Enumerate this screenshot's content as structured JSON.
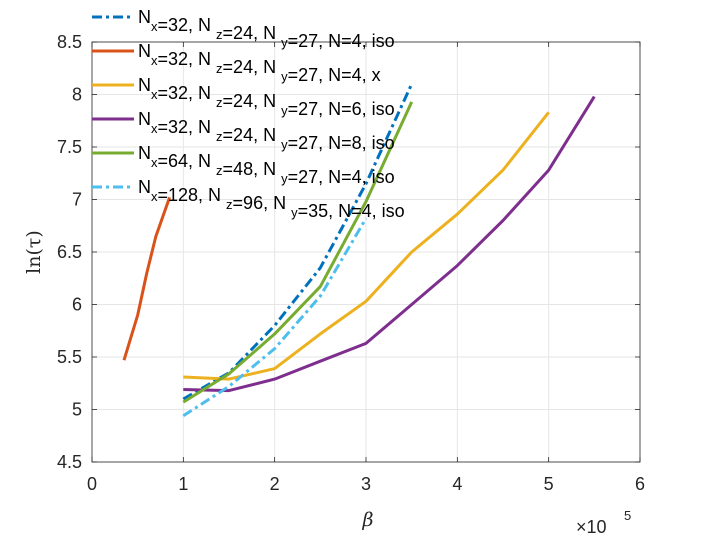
{
  "chart_data": {
    "type": "line",
    "title": "",
    "xlabel": "β",
    "ylabel": "ln(τ)",
    "x_exponent_label": {
      "base": "×10",
      "exp": "5"
    },
    "xlim": [
      0,
      6
    ],
    "ylim": [
      4.5,
      8.5
    ],
    "x_ticks": [
      0,
      1,
      2,
      3,
      4,
      5,
      6
    ],
    "x_tick_labels": [
      "0",
      "1",
      "2",
      "3",
      "4",
      "5",
      "6"
    ],
    "y_ticks": [
      4.5,
      5,
      5.5,
      6,
      6.5,
      7,
      7.5,
      8,
      8.5
    ],
    "y_tick_labels": [
      "4.5",
      "5",
      "5.5",
      "6",
      "6.5",
      "7",
      "7.5",
      "8",
      "8.5"
    ],
    "grid": true,
    "legend_position": "top-left",
    "series": [
      {
        "name": "Nx=32, Nz=24, Ny=27, N=4, iso",
        "legend": {
          "nx": "32",
          "nz": "24",
          "ny": "27",
          "rest": "=27, N=4, iso"
        },
        "color": "#0072BD",
        "style": "dashdot",
        "x": [
          1.0,
          1.5,
          2.0,
          2.5,
          3.0,
          3.5
        ],
        "y": [
          5.1,
          5.35,
          5.8,
          6.35,
          7.15,
          8.1
        ]
      },
      {
        "name": "Nx=32, Nz=24, Ny=27, N=4, x",
        "legend": {
          "nx": "32",
          "nz": "24",
          "ny": "27",
          "rest": "=27, N=4, x"
        },
        "color": "#D95319",
        "style": "solid",
        "x": [
          0.35,
          0.5,
          0.6,
          0.7,
          0.85
        ],
        "y": [
          5.47,
          5.9,
          6.3,
          6.65,
          7.02
        ]
      },
      {
        "name": "Nx=32, Nz=24, Ny=27, N=6, iso",
        "legend": {
          "nx": "32",
          "nz": "24",
          "ny": "27",
          "rest": "=27, N=6, iso"
        },
        "color": "#EDB120",
        "style": "solid",
        "x": [
          1.0,
          1.5,
          2.0,
          2.5,
          3.0,
          3.5,
          4.0,
          4.5,
          5.0
        ],
        "y": [
          5.31,
          5.29,
          5.39,
          5.72,
          6.03,
          6.5,
          6.86,
          7.28,
          7.83
        ]
      },
      {
        "name": "Nx=32, Nz=24, Ny=27, N=8, iso",
        "legend": {
          "nx": "32",
          "nz": "24",
          "ny": "27",
          "rest": "=27, N=8, iso"
        },
        "color": "#7E2F8E",
        "style": "solid",
        "x": [
          1.0,
          1.5,
          2.0,
          2.5,
          3.0,
          3.5,
          4.0,
          4.5,
          5.0,
          5.5
        ],
        "y": [
          5.19,
          5.18,
          5.29,
          5.46,
          5.63,
          6.0,
          6.37,
          6.8,
          7.28,
          7.98
        ]
      },
      {
        "name": "Nx=64, Nz=48, Ny=27, N=4, iso",
        "legend": {
          "nx": "64",
          "nz": "48",
          "ny": "27",
          "rest": "=27, N=4, iso"
        },
        "color": "#77AC30",
        "style": "solid",
        "x": [
          1.0,
          1.5,
          2.0,
          2.5,
          3.0,
          3.5
        ],
        "y": [
          5.07,
          5.34,
          5.72,
          6.17,
          6.98,
          7.93
        ]
      },
      {
        "name": "Nx=128, Nz=96, Ny=35, N=4, iso",
        "legend": {
          "nx": "128",
          "nz": "96",
          "ny": "35",
          "rest": "=35, N=4, iso"
        },
        "color": "#4DBEEE",
        "style": "dashdot",
        "x": [
          1.0,
          1.5,
          2.0,
          2.5,
          3.0
        ],
        "y": [
          4.94,
          5.22,
          5.58,
          6.08,
          6.82
        ]
      }
    ]
  }
}
